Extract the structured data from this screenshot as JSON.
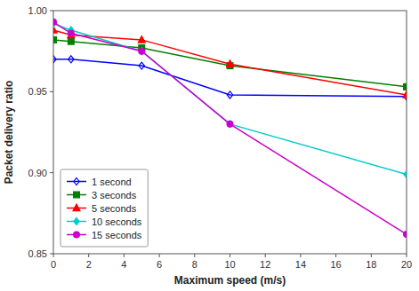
{
  "chart_data": {
    "type": "line",
    "x_label": "Maximum speed (m/s)",
    "y_label": "Packet delivery ratio",
    "x": [
      0,
      1,
      5,
      10,
      20
    ],
    "series": [
      {
        "name": "1 second",
        "color": "#0000FF",
        "marker": "diamond-open",
        "values": [
          0.97,
          0.97,
          0.966,
          0.948,
          0.947
        ]
      },
      {
        "name": "3 seconds",
        "color": "#008000",
        "marker": "square",
        "values": [
          0.982,
          0.981,
          0.977,
          0.966,
          0.953
        ]
      },
      {
        "name": "5 seconds",
        "color": "#FF0000",
        "marker": "triangle",
        "values": [
          0.988,
          0.985,
          0.982,
          0.967,
          0.948
        ]
      },
      {
        "name": "10 seconds",
        "color": "#00CCCC",
        "marker": "diamond",
        "values": [
          0.992,
          0.988,
          0.975,
          0.93,
          0.899
        ]
      },
      {
        "name": "15 seconds",
        "color": "#CC00CC",
        "marker": "circle",
        "values": [
          0.993,
          0.986,
          0.975,
          0.93,
          0.862
        ]
      }
    ],
    "xlim": [
      0,
      20
    ],
    "ylim": [
      0.85,
      1.0
    ],
    "xticks": [
      0,
      2,
      4,
      6,
      8,
      10,
      12,
      14,
      16,
      18,
      20
    ],
    "yticks": [
      0.85,
      {
        "value": 0.9,
        "label": "0.90"
      },
      0.95,
      {
        "value": 1.0,
        "label": "1.00"
      }
    ],
    "grid": false,
    "legend": "lower left"
  }
}
